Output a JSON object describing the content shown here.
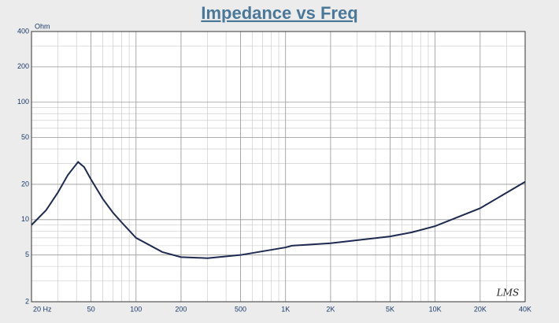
{
  "chart_data": {
    "type": "line",
    "title": "Impedance vs Freq",
    "y_label": "Ohm",
    "annotation": "LMS",
    "log_x": true,
    "log_y": true,
    "grid": true,
    "color": "#1f2a50",
    "x": [
      20,
      25,
      30,
      35,
      41,
      45,
      50,
      60,
      70,
      80,
      100,
      150,
      200,
      300,
      500,
      1000,
      1100,
      2000,
      5000,
      7000,
      10000,
      20000,
      40000
    ],
    "values": [
      9,
      12,
      17,
      24,
      31,
      28,
      22,
      15,
      11.5,
      9.5,
      7,
      5.3,
      4.8,
      4.7,
      5,
      5.8,
      6,
      6.3,
      7.2,
      7.8,
      8.8,
      12.5,
      21
    ],
    "xlim": [
      20,
      40000
    ],
    "ylim": [
      2,
      400
    ],
    "xticks": [
      {
        "value": 20,
        "label": "20  Hz"
      },
      50,
      100,
      200,
      500,
      {
        "value": 1000,
        "label": "1K"
      },
      {
        "value": 2000,
        "label": "2K"
      },
      {
        "value": 5000,
        "label": "5K"
      },
      {
        "value": 10000,
        "label": "10K"
      },
      {
        "value": 20000,
        "label": "20K"
      },
      {
        "value": 40000,
        "label": "40K"
      }
    ],
    "yticks": [
      2,
      5,
      10,
      20,
      50,
      100,
      200,
      400
    ]
  }
}
